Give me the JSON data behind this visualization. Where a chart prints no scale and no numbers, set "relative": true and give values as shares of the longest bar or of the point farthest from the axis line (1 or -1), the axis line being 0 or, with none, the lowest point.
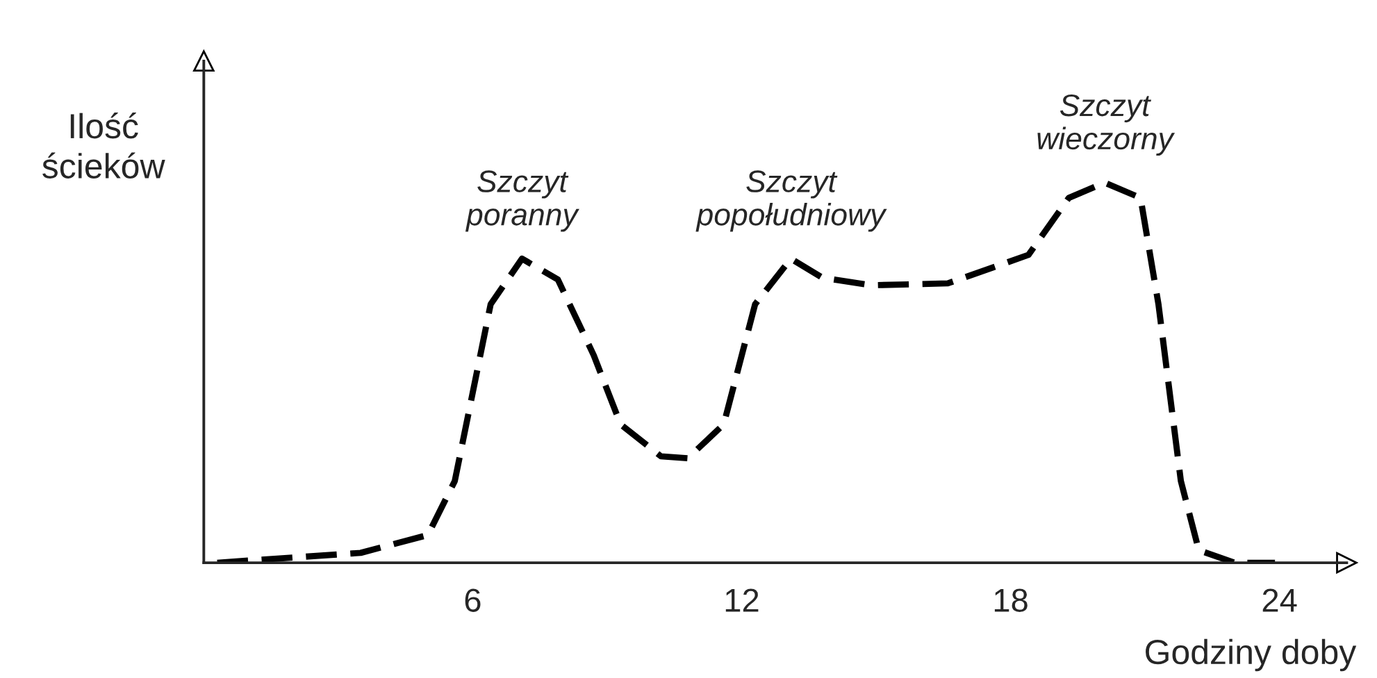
{
  "chart_data": {
    "type": "line",
    "relative": true,
    "xlabel": "Godziny doby",
    "ylabel": "Ilość\nścieków",
    "xlim": [
      0,
      25.5
    ],
    "xticks": [
      6,
      12,
      18,
      24
    ],
    "line_style": "dashed",
    "marker": "none",
    "grid": false,
    "legend": false,
    "series": [
      {
        "color": "#000000",
        "x": [
          0.3,
          3.5,
          5.0,
          5.6,
          6.4,
          7.1,
          7.9,
          8.7,
          9.3,
          10.2,
          10.8,
          11.6,
          12.3,
          13.1,
          13.8,
          14.9,
          16.6,
          18.4,
          19.3,
          20.1,
          20.9,
          21.3,
          21.8,
          22.2,
          23.0,
          23.9
        ],
        "values": [
          0,
          0.026,
          0.073,
          0.215,
          0.68,
          0.8,
          0.745,
          0.546,
          0.364,
          0.28,
          0.275,
          0.364,
          0.68,
          0.8,
          0.75,
          0.73,
          0.735,
          0.81,
          0.96,
          1,
          0.96,
          0.68,
          0.215,
          0.033,
          0,
          0
        ]
      }
    ],
    "annotations": [
      {
        "text": "Szczyt\nporanny",
        "x": 7.1,
        "y": 0.8
      },
      {
        "text": "Szczyt\npopołudniowy",
        "x": 13.1,
        "y": 0.8
      },
      {
        "text": "Szczyt\nwieczorny",
        "x": 20.1,
        "y": 1
      }
    ]
  }
}
